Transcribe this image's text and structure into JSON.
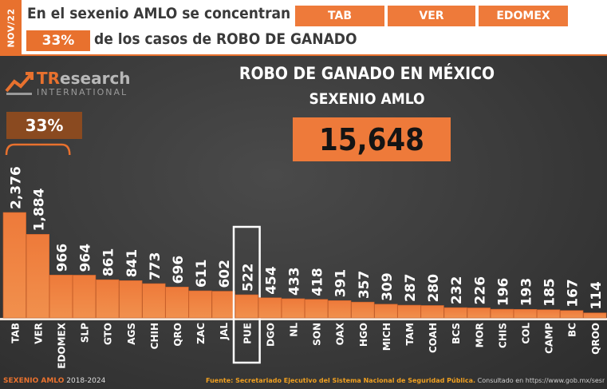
{
  "header": {
    "date_tag": "NOV/22",
    "headline_part1": "En el sexenio AMLO se concentran en",
    "headline_part2": "de los casos de ROBO DE GANADO",
    "states": [
      "TAB",
      "VER",
      "EDOMEX"
    ],
    "percent": "33%"
  },
  "logo": {
    "name_prefix": "TR",
    "name_rest": "esearch",
    "subtitle": "INTERNATIONAL"
  },
  "bracket_label": "33%",
  "chart_title_line1": "ROBO DE GANADO EN MÉXICO",
  "chart_title_line2": "SEXENIO AMLO",
  "total": "15,648",
  "footer": {
    "left_bold": "SEXENIO AMLO",
    "left_years": "2018-2024",
    "source_bold": "Fuente: Secretariado Ejecutivo del Sistema Nacional de Seguridad Pública.",
    "source_rest": "Consultado en https://www.gob.mx/sesnsp/acciones-y-programas/incidencia-"
  },
  "colors": {
    "accent": "#e8712e",
    "bar_top": "#ee7a3a",
    "bar_bottom": "#f1904d",
    "highlight_box": "#ffffff"
  },
  "chart_data": {
    "type": "bar",
    "title": "ROBO DE GANADO EN MÉXICO",
    "categories": [
      "TAB",
      "VER",
      "EDOMEX",
      "SLP",
      "GTO",
      "AGS",
      "CHIH",
      "QRO",
      "ZAC",
      "JAL",
      "PUE",
      "DGO",
      "NL",
      "SON",
      "OAX",
      "HGO",
      "MICH",
      "TAM",
      "COAH",
      "BCS",
      "MOR",
      "CHIS",
      "COL",
      "CAMP",
      "BC",
      "QROO"
    ],
    "values": [
      2376,
      1884,
      966,
      964,
      861,
      841,
      773,
      696,
      611,
      602,
      522,
      454,
      433,
      418,
      391,
      357,
      309,
      287,
      280,
      232,
      226,
      196,
      193,
      185,
      167,
      114
    ],
    "value_labels": [
      "2,376",
      "1,884",
      "966",
      "964",
      "861",
      "841",
      "773",
      "696",
      "611",
      "602",
      "522",
      "454",
      "433",
      "418",
      "391",
      "357",
      "309",
      "287",
      "280",
      "232",
      "226",
      "196",
      "193",
      "185",
      "167",
      "114"
    ],
    "highlighted_category": "PUE",
    "ylim": [
      0,
      2376
    ],
    "grid": false,
    "legend": "none"
  }
}
